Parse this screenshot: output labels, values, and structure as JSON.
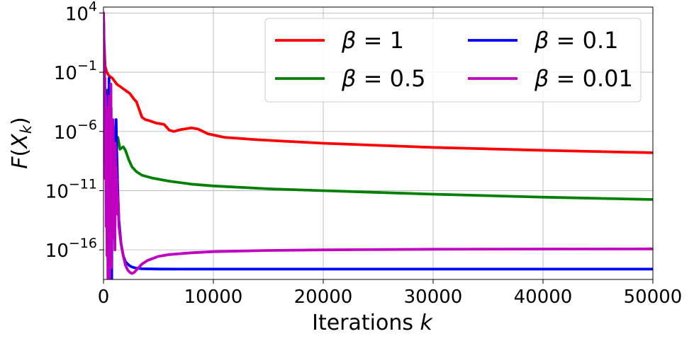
{
  "chart_data": {
    "type": "line",
    "title": "",
    "xlabel": "Iterations k",
    "ylabel": "F(X_k)",
    "xscale": "linear",
    "yscale": "log",
    "xlim": [
      0,
      50000
    ],
    "ylim_log10": [
      -18.5,
      4.5
    ],
    "grid": true,
    "legend_position": "top-right",
    "legend_columns": 2,
    "x_ticks": [
      0,
      10000,
      20000,
      30000,
      40000,
      50000
    ],
    "x_tick_labels": [
      "0",
      "10000",
      "20000",
      "30000",
      "40000",
      "50000"
    ],
    "y_ticks_log10": [
      4,
      -1,
      -6,
      -11,
      -16
    ],
    "y_tick_labels": [
      {
        "base": "10",
        "exp": "4"
      },
      {
        "base": "10",
        "exp": "−1"
      },
      {
        "base": "10",
        "exp": "−6"
      },
      {
        "base": "10",
        "exp": "−11"
      },
      {
        "base": "10",
        "exp": "−16"
      }
    ],
    "series": [
      {
        "name": "β = 1",
        "legend_symbol": "β",
        "legend_value": "1",
        "color": "#ff0000",
        "x": [
          0,
          60,
          150,
          300,
          500,
          800,
          1200,
          1800,
          2400,
          2800,
          3000,
          3500,
          3800,
          4200,
          4800,
          5500,
          6000,
          6400,
          7000,
          8000,
          8600,
          9500,
          11000,
          14000,
          20000,
          30000,
          40000,
          50000
        ],
        "log10_y": [
          4.0,
          1.5,
          -0.5,
          -1.0,
          -1.3,
          -1.5,
          -2.0,
          -2.4,
          -2.8,
          -3.3,
          -3.5,
          -4.8,
          -5.0,
          -5.1,
          -5.3,
          -5.4,
          -5.9,
          -6.0,
          -5.85,
          -5.7,
          -5.8,
          -6.2,
          -6.5,
          -6.7,
          -7.0,
          -7.35,
          -7.6,
          -7.8
        ]
      },
      {
        "name": "β = 0.5",
        "legend_symbol": "β",
        "legend_value": "0.5",
        "color": "#008000",
        "x": [
          0,
          50,
          100,
          200,
          300,
          400,
          500,
          700,
          900,
          1100,
          1300,
          1500,
          1800,
          2000,
          2300,
          2600,
          3000,
          3500,
          4500,
          6000,
          8000,
          10000,
          15000,
          20000,
          30000,
          40000,
          50000
        ],
        "log10_y": [
          4.0,
          0.5,
          -2.0,
          -3.5,
          -4.5,
          -2.5,
          -5.5,
          -6.0,
          -5.5,
          -7.0,
          -6.5,
          -7.5,
          -7.3,
          -7.6,
          -8.4,
          -9.0,
          -9.4,
          -9.7,
          -9.95,
          -10.2,
          -10.45,
          -10.6,
          -10.85,
          -11.0,
          -11.3,
          -11.55,
          -11.75
        ]
      },
      {
        "name": "β = 0.1",
        "legend_symbol": "β",
        "legend_value": "0.1",
        "color": "#0000ff",
        "x": [
          0,
          50,
          100,
          150,
          200,
          250,
          300,
          350,
          400,
          450,
          500,
          550,
          600,
          650,
          700,
          750,
          800,
          850,
          900,
          950,
          1000,
          1050,
          1100,
          1150,
          1200,
          1300,
          1400,
          1600,
          1800,
          2000,
          2200,
          2400,
          2600,
          2800,
          3000,
          3500,
          5000,
          10000,
          20000,
          30000,
          40000,
          50000
        ],
        "log10_y": [
          4.0,
          0.5,
          -2.0,
          -4.5,
          -2.5,
          -8.0,
          -3.0,
          -10.0,
          -3.5,
          -12.0,
          -1.5,
          -14.0,
          -5.0,
          -16.0,
          -4.0,
          -18.5,
          -7.0,
          -15.0,
          -9.0,
          -12.0,
          -7.0,
          -13.0,
          -9.0,
          -5.0,
          -7.5,
          -11.0,
          -13.5,
          -15.5,
          -16.5,
          -17.0,
          -17.2,
          -17.35,
          -17.45,
          -17.5,
          -17.55,
          -17.6,
          -17.62,
          -17.63,
          -17.63,
          -17.63,
          -17.63,
          -17.63
        ]
      },
      {
        "name": "β = 0.01",
        "legend_symbol": "β",
        "legend_value": "0.01",
        "color": "#c000c0",
        "x": [
          0,
          30,
          60,
          100,
          130,
          160,
          200,
          240,
          280,
          320,
          360,
          400,
          440,
          480,
          520,
          560,
          600,
          640,
          680,
          720,
          760,
          800,
          840,
          880,
          920,
          960,
          1000,
          1040,
          1080,
          1120,
          1160,
          1200,
          1240,
          1280,
          1320,
          1400,
          1600,
          1800,
          2000,
          2200,
          2400,
          2600,
          2800,
          3000,
          3500,
          4000,
          5000,
          6000,
          8000,
          10000,
          15000,
          20000,
          30000,
          40000,
          50000
        ],
        "log10_y": [
          4.0,
          2.0,
          -1.0,
          -5.0,
          -1.5,
          -10.0,
          -3.0,
          -14.0,
          -6.0,
          -16.5,
          -4.0,
          -18.5,
          -8.0,
          -14.0,
          -3.0,
          -18.5,
          -10.0,
          -16.0,
          -2.0,
          -17.5,
          -8.0,
          -12.0,
          -15.0,
          -5.0,
          -13.0,
          -8.0,
          -12.0,
          -16.0,
          -7.0,
          -11.0,
          -9.0,
          -12.0,
          -10.0,
          -13.0,
          -11.5,
          -14.0,
          -15.5,
          -16.5,
          -17.3,
          -17.7,
          -17.9,
          -18.0,
          -17.9,
          -17.7,
          -17.2,
          -16.9,
          -16.55,
          -16.4,
          -16.25,
          -16.15,
          -16.05,
          -16.0,
          -15.95,
          -15.93,
          -15.92
        ]
      }
    ]
  }
}
